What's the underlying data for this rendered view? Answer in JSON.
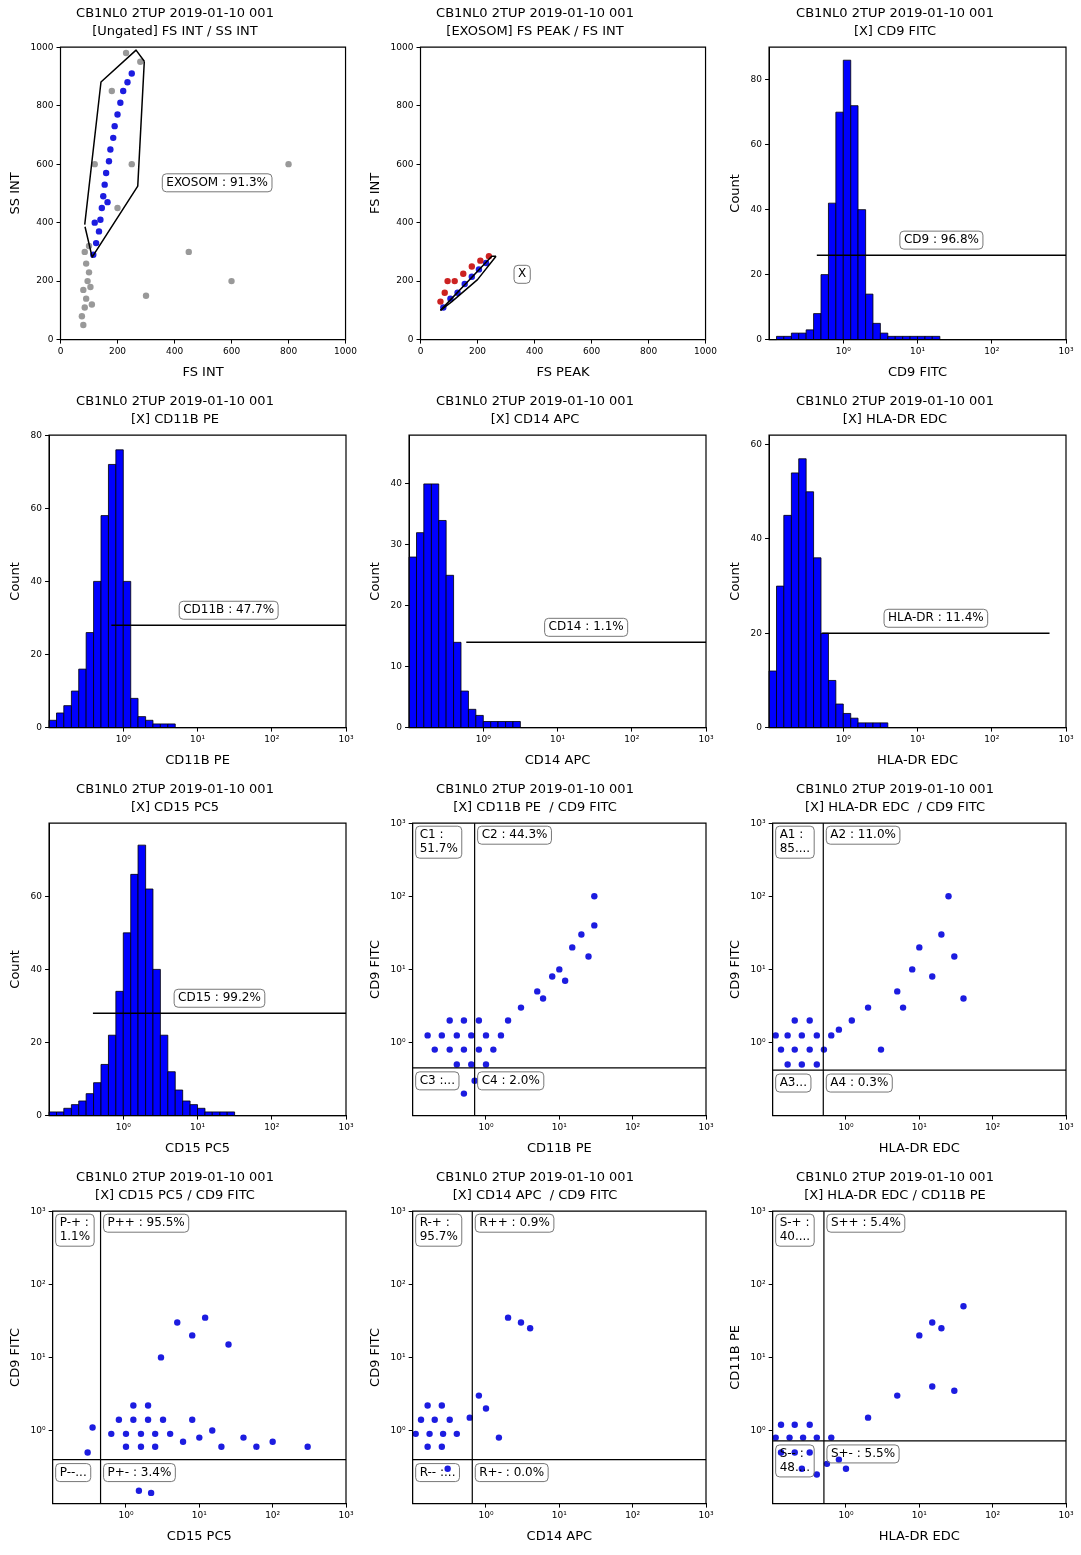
{
  "chart_data": [
    {
      "type": "scatter",
      "title": "CB1NL0 2TUP 2019-01-10 001",
      "subtitle": "[Ungated] FS INT / SS INT",
      "xlabel": "FS INT",
      "ylabel": "SS INT",
      "xlim": [
        0,
        1000
      ],
      "xticks": [
        0,
        200,
        400,
        600,
        800,
        1000
      ],
      "ylim": [
        0,
        1000
      ],
      "yticks": [
        0,
        200,
        400,
        600,
        800,
        1000
      ],
      "marker": "circle",
      "series": [
        {
          "color": "#999999",
          "x": [
            80,
            75,
            85,
            90,
            80,
            95,
            100,
            90,
            105,
            110,
            85,
            100,
            120,
            200,
            250,
            280,
            300,
            450,
            600,
            800,
            230,
            180
          ],
          "values": [
            50,
            80,
            110,
            140,
            170,
            200,
            230,
            260,
            180,
            120,
            300,
            320,
            600,
            450,
            600,
            950,
            150,
            300,
            200,
            600,
            980,
            850
          ]
        },
        {
          "color": "#1c1ce0",
          "x": [
            115,
            125,
            135,
            140,
            145,
            150,
            155,
            160,
            170,
            175,
            185,
            190,
            200,
            210,
            220,
            235,
            250,
            165,
            120
          ],
          "values": [
            290,
            330,
            370,
            410,
            450,
            490,
            530,
            570,
            610,
            650,
            690,
            730,
            770,
            810,
            850,
            880,
            910,
            470,
            400
          ]
        },
        {
          "type": "line",
          "marker": "none",
          "color": "#000000",
          "x": [
            85,
            142,
            265,
            294
          ],
          "values": [
            393,
            881,
            990,
            952
          ]
        },
        {
          "type": "line",
          "marker": "none",
          "color": "#000000",
          "name": "EXOSOM : 91.3%",
          "x": [
            86,
            111,
            271,
            294
          ],
          "values": [
            386,
            282,
            525,
            952
          ]
        }
      ]
    },
    {
      "type": "scatter",
      "title": "CB1NL0 2TUP 2019-01-10 001",
      "subtitle": "[EXOSOM] FS PEAK / FS INT",
      "xlabel": "FS PEAK",
      "ylabel": "FS INT",
      "xlim": [
        0,
        1000
      ],
      "xticks": [
        0,
        200,
        400,
        600,
        800,
        1000
      ],
      "ylim": [
        0,
        1000
      ],
      "yticks": [
        0,
        200,
        400,
        600,
        800,
        1000
      ],
      "marker": "circle",
      "series": [
        {
          "color": "#cc2222",
          "x": [
            70,
            85,
            120,
            150,
            180,
            210,
            240,
            95
          ],
          "values": [
            130,
            160,
            200,
            225,
            250,
            270,
            285,
            200
          ]
        },
        {
          "color": "#1c1ce0",
          "x": [
            80,
            105,
            130,
            155,
            180,
            205,
            230
          ],
          "values": [
            110,
            140,
            160,
            190,
            215,
            240,
            262
          ]
        },
        {
          "type": "line",
          "marker": "none",
          "color": "#000000",
          "name": "X",
          "x": [
            70,
            250,
            265
          ],
          "values": [
            100,
            285,
            285
          ]
        },
        {
          "type": "line",
          "marker": "none",
          "color": "#000000",
          "x": [
            70,
            110,
            200,
            265
          ],
          "values": [
            100,
            130,
            205,
            285
          ]
        }
      ]
    },
    {
      "type": "histogram",
      "title": "CB1NL0 2TUP 2019-01-10 001",
      "subtitle": "[X] CD9 FITC",
      "xlabel": "CD9 FITC",
      "ylabel": "Count",
      "log": "x",
      "color": "#0000ff",
      "xlim": [
        0.1,
        1000
      ],
      "xticks": [
        {
          "value": 1,
          "label": "10⁰"
        },
        {
          "value": 10,
          "label": "10¹"
        },
        {
          "value": 100,
          "label": "10²"
        },
        {
          "value": 1000,
          "label": "10³"
        }
      ],
      "ylim": [
        0,
        90
      ],
      "yticks": [
        0,
        20,
        40,
        60,
        80
      ],
      "bins": [
        0.1,
        0.126,
        0.158,
        0.2,
        0.251,
        0.316,
        0.398,
        0.501,
        0.631,
        0.794,
        1,
        1.26,
        1.58,
        2,
        2.51,
        3.16,
        3.98,
        5.01,
        6.31,
        7.94,
        10,
        12.6,
        15.8,
        20,
        25.1,
        31.6,
        39.8,
        50.1,
        63.1,
        79.4,
        100,
        126,
        158,
        200,
        251,
        316,
        398,
        501,
        631,
        794,
        1000
      ],
      "values": [
        0,
        1,
        1,
        2,
        2,
        3,
        8,
        20,
        42,
        70,
        86,
        72,
        40,
        14,
        5,
        2,
        1,
        1,
        1,
        1,
        1,
        1,
        1,
        0,
        0,
        0,
        0,
        0,
        0,
        0,
        0,
        0,
        0,
        0,
        0,
        0,
        0,
        0,
        0,
        0
      ],
      "series": [
        {
          "type": "line",
          "marker": "none",
          "color": "#000000",
          "name": "CD9 : 96.8%",
          "x": [
            0.44,
            1000
          ],
          "values": [
            26,
            26
          ]
        }
      ]
    },
    {
      "type": "histogram",
      "title": "CB1NL0 2TUP 2019-01-10 001",
      "subtitle": "[X] CD11B PE",
      "xlabel": "CD11B PE",
      "ylabel": "Count",
      "log": "x",
      "color": "#0000ff",
      "xlim": [
        0.1,
        1000
      ],
      "xticks": [
        {
          "value": 1,
          "label": "10⁰"
        },
        {
          "value": 10,
          "label": "10¹"
        },
        {
          "value": 100,
          "label": "10²"
        },
        {
          "value": 1000,
          "label": "10³"
        }
      ],
      "ylim": [
        0,
        80
      ],
      "yticks": [
        0,
        20,
        40,
        60,
        80
      ],
      "bins": [
        0.1,
        0.126,
        0.158,
        0.2,
        0.251,
        0.316,
        0.398,
        0.501,
        0.631,
        0.794,
        1,
        1.26,
        1.58,
        2,
        2.51,
        3.16,
        3.98,
        5.01,
        6.31,
        7.94,
        10,
        12.6,
        15.8,
        20,
        25.1,
        31.6,
        39.8,
        50.1,
        63.1,
        79.4,
        100,
        126,
        158,
        200,
        251,
        316,
        398,
        501,
        631,
        794,
        1000
      ],
      "values": [
        2,
        4,
        6,
        10,
        16,
        26,
        40,
        58,
        72,
        76,
        40,
        8,
        3,
        2,
        1,
        1,
        1,
        0,
        0,
        0,
        0,
        0,
        0,
        0,
        0,
        0,
        0,
        0,
        0,
        0,
        0,
        0,
        0,
        0,
        0,
        0,
        0,
        0,
        0,
        0
      ],
      "series": [
        {
          "type": "line",
          "marker": "none",
          "color": "#000000",
          "name": "CD11B : 47.7%",
          "x": [
            0.69,
            1000
          ],
          "values": [
            28,
            28
          ]
        }
      ]
    },
    {
      "type": "histogram",
      "title": "CB1NL0 2TUP 2019-01-10 001",
      "subtitle": "[X] CD14 APC",
      "xlabel": "CD14 APC",
      "ylabel": "Count",
      "log": "x",
      "color": "#0000ff",
      "xlim": [
        0.1,
        1000
      ],
      "xticks": [
        {
          "value": 1,
          "label": "10⁰"
        },
        {
          "value": 10,
          "label": "10¹"
        },
        {
          "value": 100,
          "label": "10²"
        },
        {
          "value": 1000,
          "label": "10³"
        }
      ],
      "ylim": [
        0,
        48
      ],
      "yticks": [
        0,
        10,
        20,
        30,
        40
      ],
      "bins": [
        0.1,
        0.126,
        0.158,
        0.2,
        0.251,
        0.316,
        0.398,
        0.501,
        0.631,
        0.794,
        1,
        1.26,
        1.58,
        2,
        2.51,
        3.16,
        3.98,
        5.01,
        6.31,
        7.94,
        10,
        12.6,
        15.8,
        20,
        25.1,
        31.6,
        39.8,
        50.1,
        63.1,
        79.4,
        100,
        126,
        158,
        200,
        251,
        316,
        398,
        501,
        631,
        794,
        1000
      ],
      "values": [
        28,
        32,
        40,
        40,
        34,
        25,
        14,
        6,
        3,
        2,
        1,
        1,
        1,
        1,
        1,
        0,
        0,
        0,
        0,
        0,
        0,
        0,
        0,
        0,
        0,
        0,
        0,
        0,
        0,
        0,
        0,
        0,
        0,
        0,
        0,
        0,
        0,
        0,
        0,
        0
      ],
      "series": [
        {
          "type": "line",
          "marker": "none",
          "color": "#000000",
          "name": "CD14 : 1.1%",
          "x": [
            0.59,
            1000
          ],
          "values": [
            14,
            14
          ]
        }
      ]
    },
    {
      "type": "histogram",
      "title": "CB1NL0 2TUP 2019-01-10 001",
      "subtitle": "[X] HLA-DR EDC",
      "xlabel": "HLA-DR EDC",
      "ylabel": "Count",
      "log": "x",
      "color": "#0000ff",
      "xlim": [
        0.1,
        1000
      ],
      "xticks": [
        {
          "value": 1,
          "label": "10⁰"
        },
        {
          "value": 10,
          "label": "10¹"
        },
        {
          "value": 100,
          "label": "10²"
        },
        {
          "value": 1000,
          "label": "10³"
        }
      ],
      "ylim": [
        0,
        62
      ],
      "yticks": [
        0,
        20,
        40,
        60
      ],
      "bins": [
        0.1,
        0.126,
        0.158,
        0.2,
        0.251,
        0.316,
        0.398,
        0.501,
        0.631,
        0.794,
        1,
        1.26,
        1.58,
        2,
        2.51,
        3.16,
        3.98,
        5.01,
        6.31,
        7.94,
        10,
        12.6,
        15.8,
        20,
        25.1,
        31.6,
        39.8,
        50.1,
        63.1,
        79.4,
        100,
        126,
        158,
        200,
        251,
        316,
        398,
        501,
        631,
        794,
        1000
      ],
      "values": [
        12,
        30,
        45,
        54,
        57,
        50,
        36,
        20,
        10,
        5,
        3,
        2,
        1,
        1,
        1,
        1,
        0,
        0,
        0,
        0,
        0,
        0,
        0,
        0,
        0,
        0,
        0,
        0,
        0,
        0,
        0,
        0,
        0,
        0,
        0,
        0,
        0,
        0,
        0,
        0
      ],
      "series": [
        {
          "type": "line",
          "marker": "none",
          "color": "#000000",
          "name": "HLA-DR : 11.4%",
          "x": [
            0.52,
            600
          ],
          "values": [
            20,
            20
          ]
        }
      ]
    },
    {
      "type": "histogram",
      "title": "CB1NL0 2TUP 2019-01-10 001",
      "subtitle": "[X] CD15 PC5",
      "xlabel": "CD15 PC5",
      "ylabel": "Count",
      "log": "x",
      "color": "#0000ff",
      "xlim": [
        0.1,
        1000
      ],
      "xticks": [
        {
          "value": 1,
          "label": "10⁰"
        },
        {
          "value": 10,
          "label": "10¹"
        },
        {
          "value": 100,
          "label": "10²"
        },
        {
          "value": 1000,
          "label": "10³"
        }
      ],
      "ylim": [
        0,
        80
      ],
      "yticks": [
        0,
        20,
        40,
        60
      ],
      "bins": [
        0.1,
        0.126,
        0.158,
        0.2,
        0.251,
        0.316,
        0.398,
        0.501,
        0.631,
        0.794,
        1,
        1.26,
        1.58,
        2,
        2.51,
        3.16,
        3.98,
        5.01,
        6.31,
        7.94,
        10,
        12.6,
        15.8,
        20,
        25.1,
        31.6,
        39.8,
        50.1,
        63.1,
        79.4,
        100,
        126,
        158,
        200,
        251,
        316,
        398,
        501,
        631,
        794,
        1000
      ],
      "values": [
        1,
        1,
        2,
        3,
        4,
        6,
        9,
        14,
        22,
        34,
        50,
        66,
        74,
        62,
        40,
        22,
        12,
        7,
        4,
        3,
        2,
        1,
        1,
        1,
        1,
        0,
        0,
        0,
        0,
        0,
        0,
        0,
        0,
        0,
        0,
        0,
        0,
        0,
        0,
        0
      ],
      "series": [
        {
          "type": "line",
          "marker": "none",
          "color": "#000000",
          "name": "CD15 : 99.2%",
          "x": [
            0.39,
            1000
          ],
          "values": [
            28,
            28
          ]
        }
      ]
    },
    {
      "type": "scatter",
      "title": "CB1NL0 2TUP 2019-01-10 001",
      "subtitle": "[X] CD11B PE  / CD9 FITC",
      "xlabel": "CD11B PE",
      "ylabel": "CD9 FITC",
      "log": "xy",
      "marker": "circle",
      "xlim": [
        0.1,
        1000
      ],
      "xticks": [
        {
          "value": 1,
          "label": "10⁰"
        },
        {
          "value": 10,
          "label": "10¹"
        },
        {
          "value": 100,
          "label": "10²"
        },
        {
          "value": 1000,
          "label": "10³"
        }
      ],
      "ylim": [
        0.1,
        1000
      ],
      "yticks": [
        {
          "value": 1,
          "label": "10⁰"
        },
        {
          "value": 10,
          "label": "10¹"
        },
        {
          "value": 100,
          "label": "10²"
        },
        {
          "value": 1000,
          "label": "10³"
        }
      ],
      "series": [
        {
          "color": "#1c1ce0",
          "x": [
            0.4,
            0.63,
            1,
            0.2,
            0.32,
            0.5,
            0.8,
            1.26,
            0.16,
            0.25,
            0.4,
            0.63,
            1,
            1.6,
            0.32,
            0.5,
            0.8,
            2,
            3,
            5,
            6,
            8,
            10,
            12,
            15,
            20,
            25,
            30,
            30,
            0.7,
            0.5
          ],
          "values": [
            0.5,
            0.5,
            0.5,
            0.8,
            0.8,
            0.8,
            0.8,
            0.8,
            1.25,
            1.25,
            1.25,
            1.25,
            1.25,
            1.25,
            2,
            2,
            2,
            2,
            3,
            5,
            4,
            8,
            10,
            7,
            20,
            30,
            15,
            40,
            100,
            0.3,
            0.2
          ]
        }
      ],
      "ref_lines": [
        {
          "axis": "x",
          "value": 0.7
        },
        {
          "axis": "y",
          "value": 0.45
        }
      ],
      "annotations": [
        "C1 :\n51.7%",
        "C2 : 44.3%",
        "C3 :...",
        "C4 : 2.0%"
      ]
    },
    {
      "type": "scatter",
      "title": "CB1NL0 2TUP 2019-01-10 001",
      "subtitle": "[X] HLA-DR EDC  / CD9 FITC",
      "xlabel": "HLA-DR EDC",
      "ylabel": "CD9 FITC",
      "log": "xy",
      "marker": "circle",
      "xlim": [
        0.1,
        1000
      ],
      "xticks": [
        {
          "value": 1,
          "label": "10⁰"
        },
        {
          "value": 10,
          "label": "10¹"
        },
        {
          "value": 100,
          "label": "10²"
        },
        {
          "value": 1000,
          "label": "10³"
        }
      ],
      "ylim": [
        0.1,
        1000
      ],
      "yticks": [
        {
          "value": 1,
          "label": "10⁰"
        },
        {
          "value": 10,
          "label": "10¹"
        },
        {
          "value": 100,
          "label": "10²"
        },
        {
          "value": 1000,
          "label": "10³"
        }
      ],
      "series": [
        {
          "color": "#1c1ce0",
          "x": [
            0.16,
            0.25,
            0.4,
            0.13,
            0.2,
            0.32,
            0.5,
            0.11,
            0.16,
            0.25,
            0.4,
            0.63,
            0.2,
            0.32,
            0.8,
            1.2,
            2,
            3,
            5,
            6,
            8,
            10,
            15,
            20,
            25,
            30,
            40
          ],
          "values": [
            0.5,
            0.5,
            0.5,
            0.8,
            0.8,
            0.8,
            0.8,
            1.25,
            1.25,
            1.25,
            1.25,
            1.25,
            2,
            2,
            1.5,
            2,
            3,
            0.8,
            5,
            3,
            10,
            20,
            8,
            30,
            100,
            15,
            4
          ]
        }
      ],
      "ref_lines": [
        {
          "axis": "x",
          "value": 0.49
        },
        {
          "axis": "y",
          "value": 0.42
        }
      ],
      "annotations": [
        "A1 :\n85....",
        "A2 : 11.0%",
        "A3...",
        "A4 : 0.3%"
      ]
    },
    {
      "type": "scatter",
      "title": "CB1NL0 2TUP 2019-01-10 001",
      "subtitle": "[X] CD15 PC5 / CD9 FITC",
      "xlabel": "CD15 PC5",
      "ylabel": "CD9 FITC",
      "log": "xy",
      "marker": "circle",
      "xlim": [
        0.1,
        1000
      ],
      "xticks": [
        {
          "value": 1,
          "label": "10⁰"
        },
        {
          "value": 10,
          "label": "10¹"
        },
        {
          "value": 100,
          "label": "10²"
        },
        {
          "value": 1000,
          "label": "10³"
        }
      ],
      "ylim": [
        0.1,
        1000
      ],
      "yticks": [
        {
          "value": 1,
          "label": "10⁰"
        },
        {
          "value": 10,
          "label": "10¹"
        },
        {
          "value": 100,
          "label": "10²"
        },
        {
          "value": 1000,
          "label": "10³"
        }
      ],
      "series": [
        {
          "color": "#1c1ce0",
          "x": [
            1,
            1.6,
            2.5,
            0.63,
            1,
            1.6,
            2.5,
            4,
            0.8,
            1.26,
            2,
            3.2,
            1.26,
            2,
            0.35,
            0.3,
            6,
            8,
            10,
            15,
            20,
            40,
            60,
            100,
            300,
            3,
            5,
            8,
            12,
            25,
            1.5,
            2.2
          ],
          "values": [
            0.6,
            0.6,
            0.6,
            0.9,
            0.9,
            0.9,
            0.9,
            0.9,
            1.4,
            1.4,
            1.4,
            1.4,
            2.2,
            2.2,
            1.1,
            0.5,
            0.7,
            1.4,
            0.8,
            1,
            0.6,
            0.8,
            0.6,
            0.7,
            0.6,
            10,
            30,
            20,
            35,
            15,
            0.15,
            0.14
          ]
        }
      ],
      "ref_lines": [
        {
          "axis": "x",
          "value": 0.45
        },
        {
          "axis": "y",
          "value": 0.4
        }
      ],
      "annotations": [
        "P-+ :\n1.1%",
        "P++ : 95.5%",
        "P--...",
        "P+- : 3.4%"
      ]
    },
    {
      "type": "scatter",
      "title": "CB1NL0 2TUP 2019-01-10 001",
      "subtitle": "[X] CD14 APC  / CD9 FITC",
      "xlabel": "CD14 APC",
      "ylabel": "CD9 FITC",
      "log": "xy",
      "marker": "circle",
      "xlim": [
        0.1,
        1000
      ],
      "xticks": [
        {
          "value": 1,
          "label": "10⁰"
        },
        {
          "value": 10,
          "label": "10¹"
        },
        {
          "value": 100,
          "label": "10²"
        },
        {
          "value": 1000,
          "label": "10³"
        }
      ],
      "ylim": [
        0.1,
        1000
      ],
      "yticks": [
        {
          "value": 1,
          "label": "10⁰"
        },
        {
          "value": 10,
          "label": "10¹"
        },
        {
          "value": 100,
          "label": "10²"
        },
        {
          "value": 1000,
          "label": "10³"
        }
      ],
      "series": [
        {
          "color": "#1c1ce0",
          "x": [
            0.16,
            0.25,
            0.11,
            0.17,
            0.26,
            0.4,
            0.13,
            0.2,
            0.32,
            0.16,
            0.25,
            0.6,
            0.8,
            1,
            1.5,
            2,
            3,
            4,
            0.3
          ],
          "values": [
            0.6,
            0.6,
            0.9,
            0.9,
            0.9,
            0.9,
            1.4,
            1.4,
            1.4,
            2.2,
            2.2,
            1.5,
            3,
            2,
            0.8,
            35,
            30,
            25,
            0.3
          ]
        }
      ],
      "ref_lines": [
        {
          "axis": "x",
          "value": 0.65
        },
        {
          "axis": "y",
          "value": 0.4
        }
      ],
      "annotations": [
        "R-+ :\n95.7%",
        "R++ : 0.9%",
        "R-- :...",
        "R+- : 0.0%"
      ]
    },
    {
      "type": "scatter",
      "title": "CB1NL0 2TUP 2019-01-10 001",
      "subtitle": "[X] HLA-DR EDC / CD11B PE",
      "xlabel": "HLA-DR EDC",
      "ylabel": "CD11B PE",
      "log": "xy",
      "marker": "circle",
      "xlim": [
        0.1,
        1000
      ],
      "xticks": [
        {
          "value": 1,
          "label": "10⁰"
        },
        {
          "value": 10,
          "label": "10¹"
        },
        {
          "value": 100,
          "label": "10²"
        },
        {
          "value": 1000,
          "label": "10³"
        }
      ],
      "ylim": [
        0.1,
        1000
      ],
      "yticks": [
        {
          "value": 1,
          "label": "10⁰"
        },
        {
          "value": 10,
          "label": "10¹"
        },
        {
          "value": 100,
          "label": "10²"
        },
        {
          "value": 1000,
          "label": "10³"
        }
      ],
      "series": [
        {
          "color": "#1c1ce0",
          "x": [
            0.4,
            0.25,
            0.13,
            0.2,
            0.32,
            0.11,
            0.17,
            0.26,
            0.4,
            0.63,
            0.13,
            0.2,
            0.32,
            0.8,
            1,
            2,
            5,
            10,
            15,
            20,
            30,
            40,
            15,
            0.55
          ],
          "values": [
            0.25,
            0.3,
            0.5,
            0.5,
            0.5,
            0.8,
            0.8,
            0.8,
            0.8,
            0.8,
            1.2,
            1.2,
            1.2,
            0.4,
            0.3,
            1.5,
            3,
            20,
            30,
            25,
            3.5,
            50,
            4,
            0.35
          ]
        }
      ],
      "ref_lines": [
        {
          "axis": "x",
          "value": 0.5
        },
        {
          "axis": "y",
          "value": 0.72
        }
      ],
      "annotations": [
        "S-+ :\n40....",
        "S++ : 5.4%",
        "S-- :\n48....",
        "S+- : 5.5%"
      ]
    }
  ]
}
